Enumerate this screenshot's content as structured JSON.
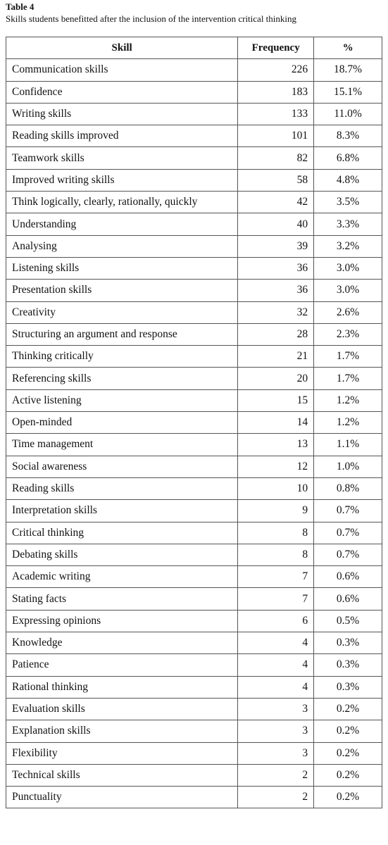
{
  "header": {
    "title": "Table 4",
    "caption": "Skills students benefitted after the inclusion of the intervention critical thinking"
  },
  "table": {
    "columns": [
      "Skill",
      "Frequency",
      "%"
    ],
    "rows": [
      [
        "Communication skills",
        226,
        "18.7%"
      ],
      [
        "Confidence",
        183,
        "15.1%"
      ],
      [
        "Writing skills",
        133,
        "11.0%"
      ],
      [
        "Reading skills improved",
        101,
        "8.3%"
      ],
      [
        "Teamwork skills",
        82,
        "6.8%"
      ],
      [
        "Improved writing skills",
        58,
        "4.8%"
      ],
      [
        "Think logically, clearly, rationally, quickly",
        42,
        "3.5%"
      ],
      [
        "Understanding",
        40,
        "3.3%"
      ],
      [
        "Analysing",
        39,
        "3.2%"
      ],
      [
        "Listening skills",
        36,
        "3.0%"
      ],
      [
        "Presentation skills",
        36,
        "3.0%"
      ],
      [
        "Creativity",
        32,
        "2.6%"
      ],
      [
        "Structuring an argument and response",
        28,
        "2.3%"
      ],
      [
        "Thinking critically",
        21,
        "1.7%"
      ],
      [
        "Referencing skills",
        20,
        "1.7%"
      ],
      [
        "Active listening",
        15,
        "1.2%"
      ],
      [
        "Open-minded",
        14,
        "1.2%"
      ],
      [
        "Time management",
        13,
        "1.1%"
      ],
      [
        "Social awareness",
        12,
        "1.0%"
      ],
      [
        "Reading skills",
        10,
        "0.8%"
      ],
      [
        "Interpretation skills",
        9,
        "0.7%"
      ],
      [
        "Critical thinking",
        8,
        "0.7%"
      ],
      [
        "Debating skills",
        8,
        "0.7%"
      ],
      [
        "Academic writing",
        7,
        "0.6%"
      ],
      [
        "Stating facts",
        7,
        "0.6%"
      ],
      [
        "Expressing opinions",
        6,
        "0.5%"
      ],
      [
        "Knowledge",
        4,
        "0.3%"
      ],
      [
        "Patience",
        4,
        "0.3%"
      ],
      [
        "Rational thinking",
        4,
        "0.3%"
      ],
      [
        "Evaluation skills",
        3,
        "0.2%"
      ],
      [
        "Explanation skills",
        3,
        "0.2%"
      ],
      [
        "Flexibility",
        3,
        "0.2%"
      ],
      [
        "Technical skills",
        2,
        "0.2%"
      ],
      [
        "Punctuality",
        2,
        "0.2%"
      ]
    ]
  }
}
